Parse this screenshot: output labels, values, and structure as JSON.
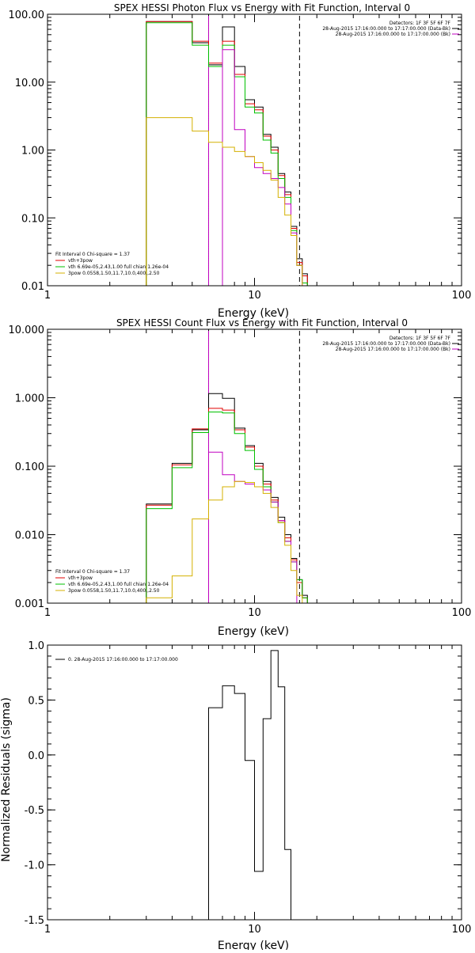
{
  "chart_data": [
    {
      "type": "line",
      "title": "SPEX HESSI Photon Flux vs Energy with Fit Function, Interval 0",
      "xlabel": "Energy (keV)",
      "ylabel": "",
      "x_scale": "log",
      "y_scale": "log",
      "xlim": [
        1,
        100
      ],
      "ylim": [
        0.01,
        100
      ],
      "x_ticks": [
        1,
        10,
        100
      ],
      "x_tick_labels": [
        "1",
        "10",
        "100"
      ],
      "y_ticks": [
        0.01,
        0.1,
        1,
        10,
        100
      ],
      "y_tick_labels": [
        "0.01",
        "0.10",
        "1.00",
        "10.00",
        "100.00"
      ],
      "bin_edges": [
        3,
        4,
        5,
        6,
        7,
        8,
        9,
        10,
        11,
        12,
        13,
        14,
        15,
        16,
        17,
        18,
        19,
        20,
        21
      ],
      "vlines": [
        {
          "x": 6,
          "style": "dotted",
          "color": "#000000"
        },
        {
          "x": 6,
          "style": "solid",
          "color": "#c000c0"
        },
        {
          "x": 16.5,
          "style": "dashed",
          "color": "#000000"
        }
      ],
      "series": [
        {
          "color": "#000000",
          "values": [
            78,
            78,
            38,
            18,
            65,
            17,
            5.5,
            4.3,
            1.7,
            1.1,
            0.45,
            0.24,
            0.075,
            0.025,
            0.015,
            0.01,
            null,
            null
          ]
        },
        {
          "color": "#e00000",
          "values": [
            78,
            78,
            40,
            19,
            40,
            13,
            4.8,
            3.9,
            1.6,
            1.0,
            0.42,
            0.22,
            0.07,
            0.022,
            0.014,
            0.01,
            null,
            null
          ]
        },
        {
          "color": "#00c000",
          "values": [
            75,
            75,
            35,
            17,
            35,
            12,
            4.3,
            3.5,
            1.4,
            0.9,
            0.38,
            0.2,
            0.065,
            0.02,
            0.011,
            0.01,
            null,
            null
          ]
        },
        {
          "color": "#c000c0",
          "values": [
            null,
            null,
            null,
            null,
            30,
            2.0,
            0.8,
            0.55,
            0.45,
            0.38,
            0.28,
            0.16,
            0.06,
            0.02,
            null,
            null,
            null,
            null
          ]
        },
        {
          "color": "#d4b000",
          "values": [
            3.0,
            3.0,
            1.9,
            1.3,
            1.1,
            0.95,
            0.8,
            0.65,
            0.5,
            0.36,
            0.2,
            0.11,
            0.055,
            0.02,
            0.01,
            null,
            null,
            null
          ]
        }
      ],
      "legend_title": "Fit Interval  0    Chi-square = 1.37",
      "legend": [
        {
          "label": "vth+3pow",
          "color": "#e00000"
        },
        {
          "label": "vth 6.69e-05,2.43,1.00  full chian 1.26e-04",
          "color": "#00c000"
        },
        {
          "label": "3pow 0.0558,1.50,11.7,10.0,400.,2.50",
          "color": "#d4b000"
        }
      ],
      "info_lines": [
        {
          "text": "Detectors: 1F 3F 5F 6F 7F",
          "color": "#000000"
        },
        {
          "text": "28-Aug-2015 17:16:00.000 to 17:17:00.000 (Data-Bk)",
          "color": "#000000"
        },
        {
          "text": "28-Aug-2015 17:16:00.000 to 17:17:00.000 (Bk)",
          "color": "#c000c0"
        }
      ]
    },
    {
      "type": "line",
      "title": "SPEX HESSI Count Flux vs Energy with Fit Function, Interval 0",
      "xlabel": "Energy (keV)",
      "ylabel": "",
      "x_scale": "log",
      "y_scale": "log",
      "xlim": [
        1,
        100
      ],
      "ylim": [
        0.001,
        10
      ],
      "x_ticks": [
        1,
        10,
        100
      ],
      "x_tick_labels": [
        "1",
        "10",
        "100"
      ],
      "y_ticks": [
        0.001,
        0.01,
        0.1,
        1,
        10
      ],
      "y_tick_labels": [
        "0.001",
        "0.010",
        "0.100",
        "1.000",
        "10.000"
      ],
      "bin_edges": [
        3,
        4,
        5,
        6,
        7,
        8,
        9,
        10,
        11,
        12,
        13,
        14,
        15,
        16,
        17,
        18,
        19,
        20,
        21
      ],
      "vlines": [
        {
          "x": 6,
          "style": "dotted",
          "color": "#000000"
        },
        {
          "x": 6,
          "style": "solid",
          "color": "#c000c0"
        },
        {
          "x": 16.5,
          "style": "dashed",
          "color": "#000000"
        }
      ],
      "series": [
        {
          "color": "#000000",
          "values": [
            0.028,
            0.11,
            0.34,
            1.15,
            0.98,
            0.36,
            0.2,
            0.11,
            0.06,
            0.035,
            0.018,
            0.01,
            0.0045,
            0.0022,
            0.0013,
            null,
            null,
            null
          ]
        },
        {
          "color": "#e00000",
          "values": [
            0.027,
            0.105,
            0.35,
            0.7,
            0.66,
            0.34,
            0.19,
            0.1,
            0.055,
            0.032,
            0.016,
            0.009,
            0.0043,
            0.002,
            0.0012,
            null,
            null,
            null
          ]
        },
        {
          "color": "#00c000",
          "values": [
            0.024,
            0.095,
            0.31,
            0.62,
            0.6,
            0.3,
            0.17,
            0.09,
            0.05,
            0.03,
            0.015,
            0.008,
            0.004,
            0.0022,
            0.0012,
            null,
            null,
            null
          ]
        },
        {
          "color": "#c000c0",
          "values": [
            null,
            null,
            null,
            0.16,
            0.075,
            0.06,
            0.055,
            0.05,
            0.045,
            0.03,
            0.016,
            0.008,
            0.004,
            null,
            null,
            null,
            null,
            null
          ]
        },
        {
          "color": "#d4b000",
          "values": [
            0.0012,
            0.0025,
            0.017,
            0.032,
            0.05,
            0.06,
            0.058,
            0.05,
            0.04,
            0.025,
            0.015,
            0.007,
            0.003,
            0.0013,
            null,
            null,
            null,
            null
          ]
        }
      ],
      "legend_title": "Fit Interval  0    Chi-square = 1.37",
      "legend": [
        {
          "label": "vth+3pow",
          "color": "#e00000"
        },
        {
          "label": "vth 6.69e-05,2.43,1.00  full chian 1.26e-04",
          "color": "#00c000"
        },
        {
          "label": "3pow 0.0558,1.50,11.7,10.0,400.,2.50",
          "color": "#d4b000"
        }
      ],
      "info_lines": [
        {
          "text": "Detectors: 1F 3F 5F 6F 7F",
          "color": "#000000"
        },
        {
          "text": "28-Aug-2015 17:16:00.000 to 17:17:00.000 (Data-Bk)",
          "color": "#000000"
        },
        {
          "text": "28-Aug-2015 17:16:00.000 to 17:17:00.000 (Bk)",
          "color": "#c000c0"
        }
      ]
    },
    {
      "type": "line",
      "title": "",
      "xlabel": "Energy (keV)",
      "ylabel": "Normalized Residuals (sigma)",
      "x_scale": "log",
      "y_scale": "linear",
      "xlim": [
        1,
        100
      ],
      "ylim": [
        -1.5,
        1.0
      ],
      "x_ticks": [
        1,
        10,
        100
      ],
      "x_tick_labels": [
        "1",
        "10",
        "100"
      ],
      "y_ticks": [
        -1.5,
        -1.0,
        -0.5,
        0.0,
        0.5,
        1.0
      ],
      "y_tick_labels": [
        "-1.5",
        "-1.0",
        "-0.5",
        "0.0",
        "0.5",
        "1.0"
      ],
      "bin_edges": [
        6,
        7,
        8,
        9,
        10,
        11,
        12,
        13,
        14,
        15,
        16.5
      ],
      "vlines": [],
      "series": [
        {
          "color": "#000000",
          "values": [
            0.43,
            0.63,
            0.56,
            -0.05,
            -1.06,
            0.33,
            0.95,
            0.62,
            -0.86,
            -1.5
          ]
        }
      ],
      "legend_title": "",
      "legend": [
        {
          "label": "0. 28-Aug-2015 17:16:00.000 to 17:17:00.000",
          "color": "#000000"
        }
      ],
      "info_lines": []
    }
  ]
}
